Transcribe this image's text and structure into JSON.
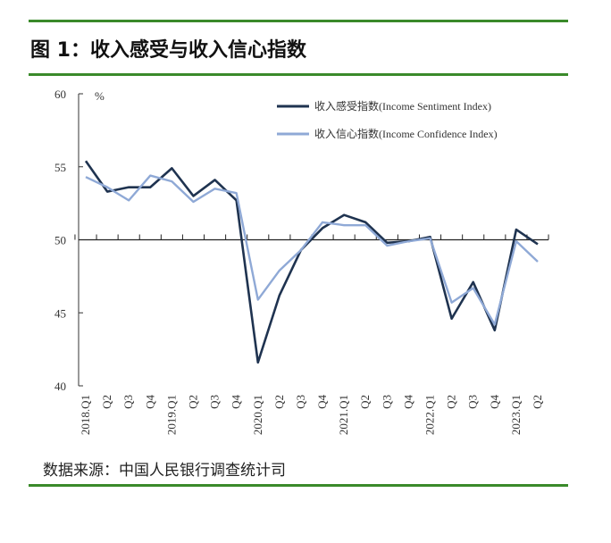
{
  "title": "图 1：收入感受与收入信心指数",
  "source": "数据来源：中国人民银行调查统计司",
  "chart_data": {
    "type": "line",
    "title": "图 1：收入感受与收入信心指数",
    "ylabel": "%",
    "ylim": [
      40,
      60
    ],
    "yticks": [
      40,
      45,
      50,
      55,
      60
    ],
    "baseline": 50,
    "legend": "top-right",
    "categories": [
      "2018.Q1",
      "Q2",
      "Q3",
      "Q4",
      "2019.Q1",
      "Q2",
      "Q3",
      "Q4",
      "2020.Q1",
      "Q2",
      "Q3",
      "Q4",
      "2021.Q1",
      "Q2",
      "Q3",
      "Q4",
      "2022.Q1",
      "Q2",
      "Q3",
      "Q4",
      "2023.Q1",
      "Q2"
    ],
    "series": [
      {
        "name": "收入感受指数(Income Sentiment Index)",
        "color": "#1f3350",
        "values": [
          55.4,
          53.3,
          53.6,
          53.6,
          54.9,
          53.0,
          54.1,
          52.7,
          41.6,
          46.2,
          49.3,
          50.8,
          51.7,
          51.2,
          49.8,
          49.9,
          50.2,
          44.6,
          47.1,
          43.8,
          50.7,
          49.7
        ]
      },
      {
        "name": "收入信心指数(Income Confidence Index)",
        "color": "#8fa9d6",
        "values": [
          54.3,
          53.6,
          52.7,
          54.4,
          54.0,
          52.6,
          53.5,
          53.2,
          45.9,
          47.9,
          49.3,
          51.2,
          51.0,
          51.0,
          49.6,
          49.9,
          50.1,
          45.7,
          46.7,
          44.2,
          49.9,
          48.5
        ]
      }
    ]
  }
}
